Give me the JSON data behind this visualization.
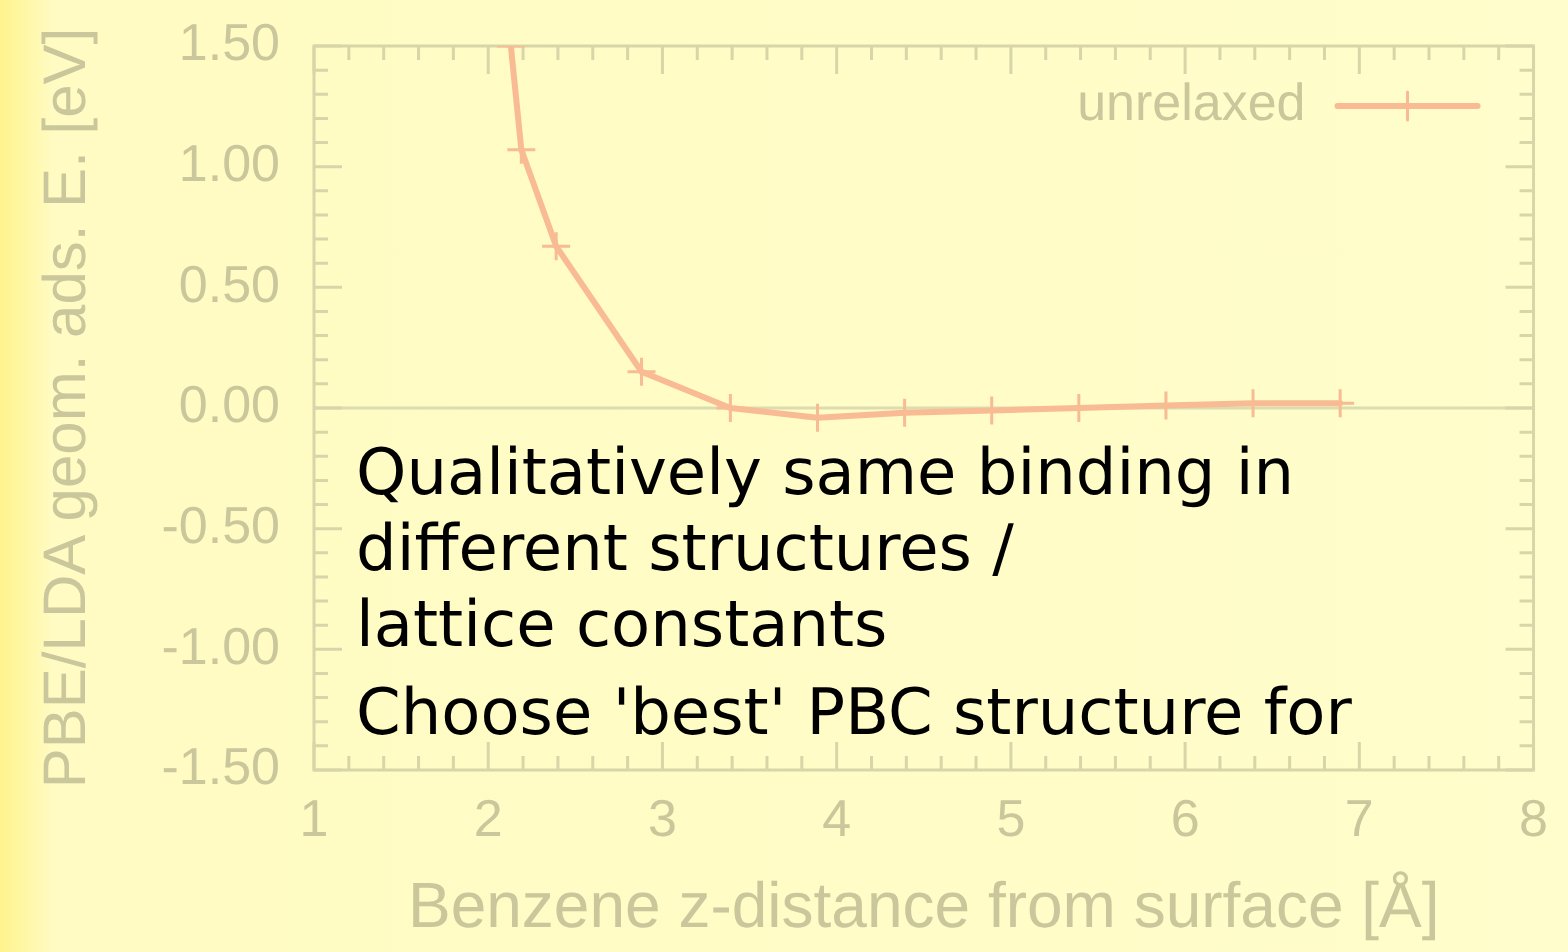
{
  "chart_data": {
    "type": "line",
    "xlabel": "Benzene z-distance from surface [Å]",
    "ylabel": "PBE/LDA geom. ads. E. [eV]",
    "series": [
      {
        "name": "unrelaxed",
        "color": "#f8bb94",
        "x": [
          2.13,
          2.19,
          2.39,
          2.88,
          3.39,
          3.89,
          4.39,
          4.89,
          5.39,
          5.89,
          6.39,
          6.89
        ],
        "values": [
          1.5,
          1.07,
          0.67,
          0.15,
          0.0,
          -0.04,
          -0.02,
          -0.01,
          0.0,
          0.01,
          0.02,
          0.02
        ]
      }
    ],
    "xlim": [
      1,
      8
    ],
    "ylim": [
      -1.5,
      1.5
    ],
    "xticks": [
      1,
      {
        "value": 1.2,
        "label": null
      },
      {
        "value": 1.4,
        "label": null
      },
      {
        "value": 1.6,
        "label": null
      },
      {
        "value": 1.8,
        "label": null
      },
      2,
      {
        "value": 2.2,
        "label": null
      },
      {
        "value": 2.4,
        "label": null
      },
      {
        "value": 2.6,
        "label": null
      },
      {
        "value": 2.8,
        "label": null
      },
      3,
      {
        "value": 3.2,
        "label": null
      },
      {
        "value": 3.4,
        "label": null
      },
      {
        "value": 3.6,
        "label": null
      },
      {
        "value": 3.8,
        "label": null
      },
      4,
      {
        "value": 4.2,
        "label": null
      },
      {
        "value": 4.4,
        "label": null
      },
      {
        "value": 4.6,
        "label": null
      },
      {
        "value": 4.8,
        "label": null
      },
      5,
      {
        "value": 5.2,
        "label": null
      },
      {
        "value": 5.4,
        "label": null
      },
      {
        "value": 5.6,
        "label": null
      },
      {
        "value": 5.8,
        "label": null
      },
      6,
      {
        "value": 6.2,
        "label": null
      },
      {
        "value": 6.4,
        "label": null
      },
      {
        "value": 6.6,
        "label": null
      },
      {
        "value": 6.8,
        "label": null
      },
      7,
      {
        "value": 7.2,
        "label": null
      },
      {
        "value": 7.4,
        "label": null
      },
      {
        "value": 7.6,
        "label": null
      },
      {
        "value": 7.8,
        "label": null
      },
      8
    ],
    "yticks": [
      {
        "value": -1.5,
        "label": "-1.50"
      },
      {
        "value": -1.4,
        "label": null
      },
      {
        "value": -1.3,
        "label": null
      },
      {
        "value": -1.2,
        "label": null
      },
      {
        "value": -1.1,
        "label": null
      },
      {
        "value": -1.0,
        "label": "-1.00"
      },
      {
        "value": -0.9,
        "label": null
      },
      {
        "value": -0.8,
        "label": null
      },
      {
        "value": -0.7,
        "label": null
      },
      {
        "value": -0.6,
        "label": null
      },
      {
        "value": -0.5,
        "label": "-0.50"
      },
      {
        "value": -0.4,
        "label": null
      },
      {
        "value": -0.3,
        "label": null
      },
      {
        "value": -0.2,
        "label": null
      },
      {
        "value": -0.1,
        "label": null
      },
      {
        "value": 0,
        "label": "0.00"
      },
      {
        "value": 0.1,
        "label": null
      },
      {
        "value": 0.2,
        "label": null
      },
      {
        "value": 0.3,
        "label": null
      },
      {
        "value": 0.4,
        "label": null
      },
      {
        "value": 0.5,
        "label": "0.50"
      },
      {
        "value": 0.6,
        "label": null
      },
      {
        "value": 0.7,
        "label": null
      },
      {
        "value": 0.8,
        "label": null
      },
      {
        "value": 0.9,
        "label": null
      },
      {
        "value": 1.0,
        "label": "1.00"
      },
      {
        "value": 1.1,
        "label": null
      },
      {
        "value": 1.2,
        "label": null
      },
      {
        "value": 1.3,
        "label": null
      },
      {
        "value": 1.4,
        "label": null
      },
      {
        "value": 1.5,
        "label": "1.50"
      }
    ],
    "ref_lines": [
      {
        "axis": "y",
        "value": 0,
        "color": "#dddbb0",
        "line_style": "solid"
      }
    ],
    "legend": "top right",
    "marker": "cross",
    "line_style": "solid",
    "annotations": [
      "Qualitatively same binding in",
      "different structures /",
      "lattice constants",
      "Choose 'best' PBC structure for"
    ]
  }
}
